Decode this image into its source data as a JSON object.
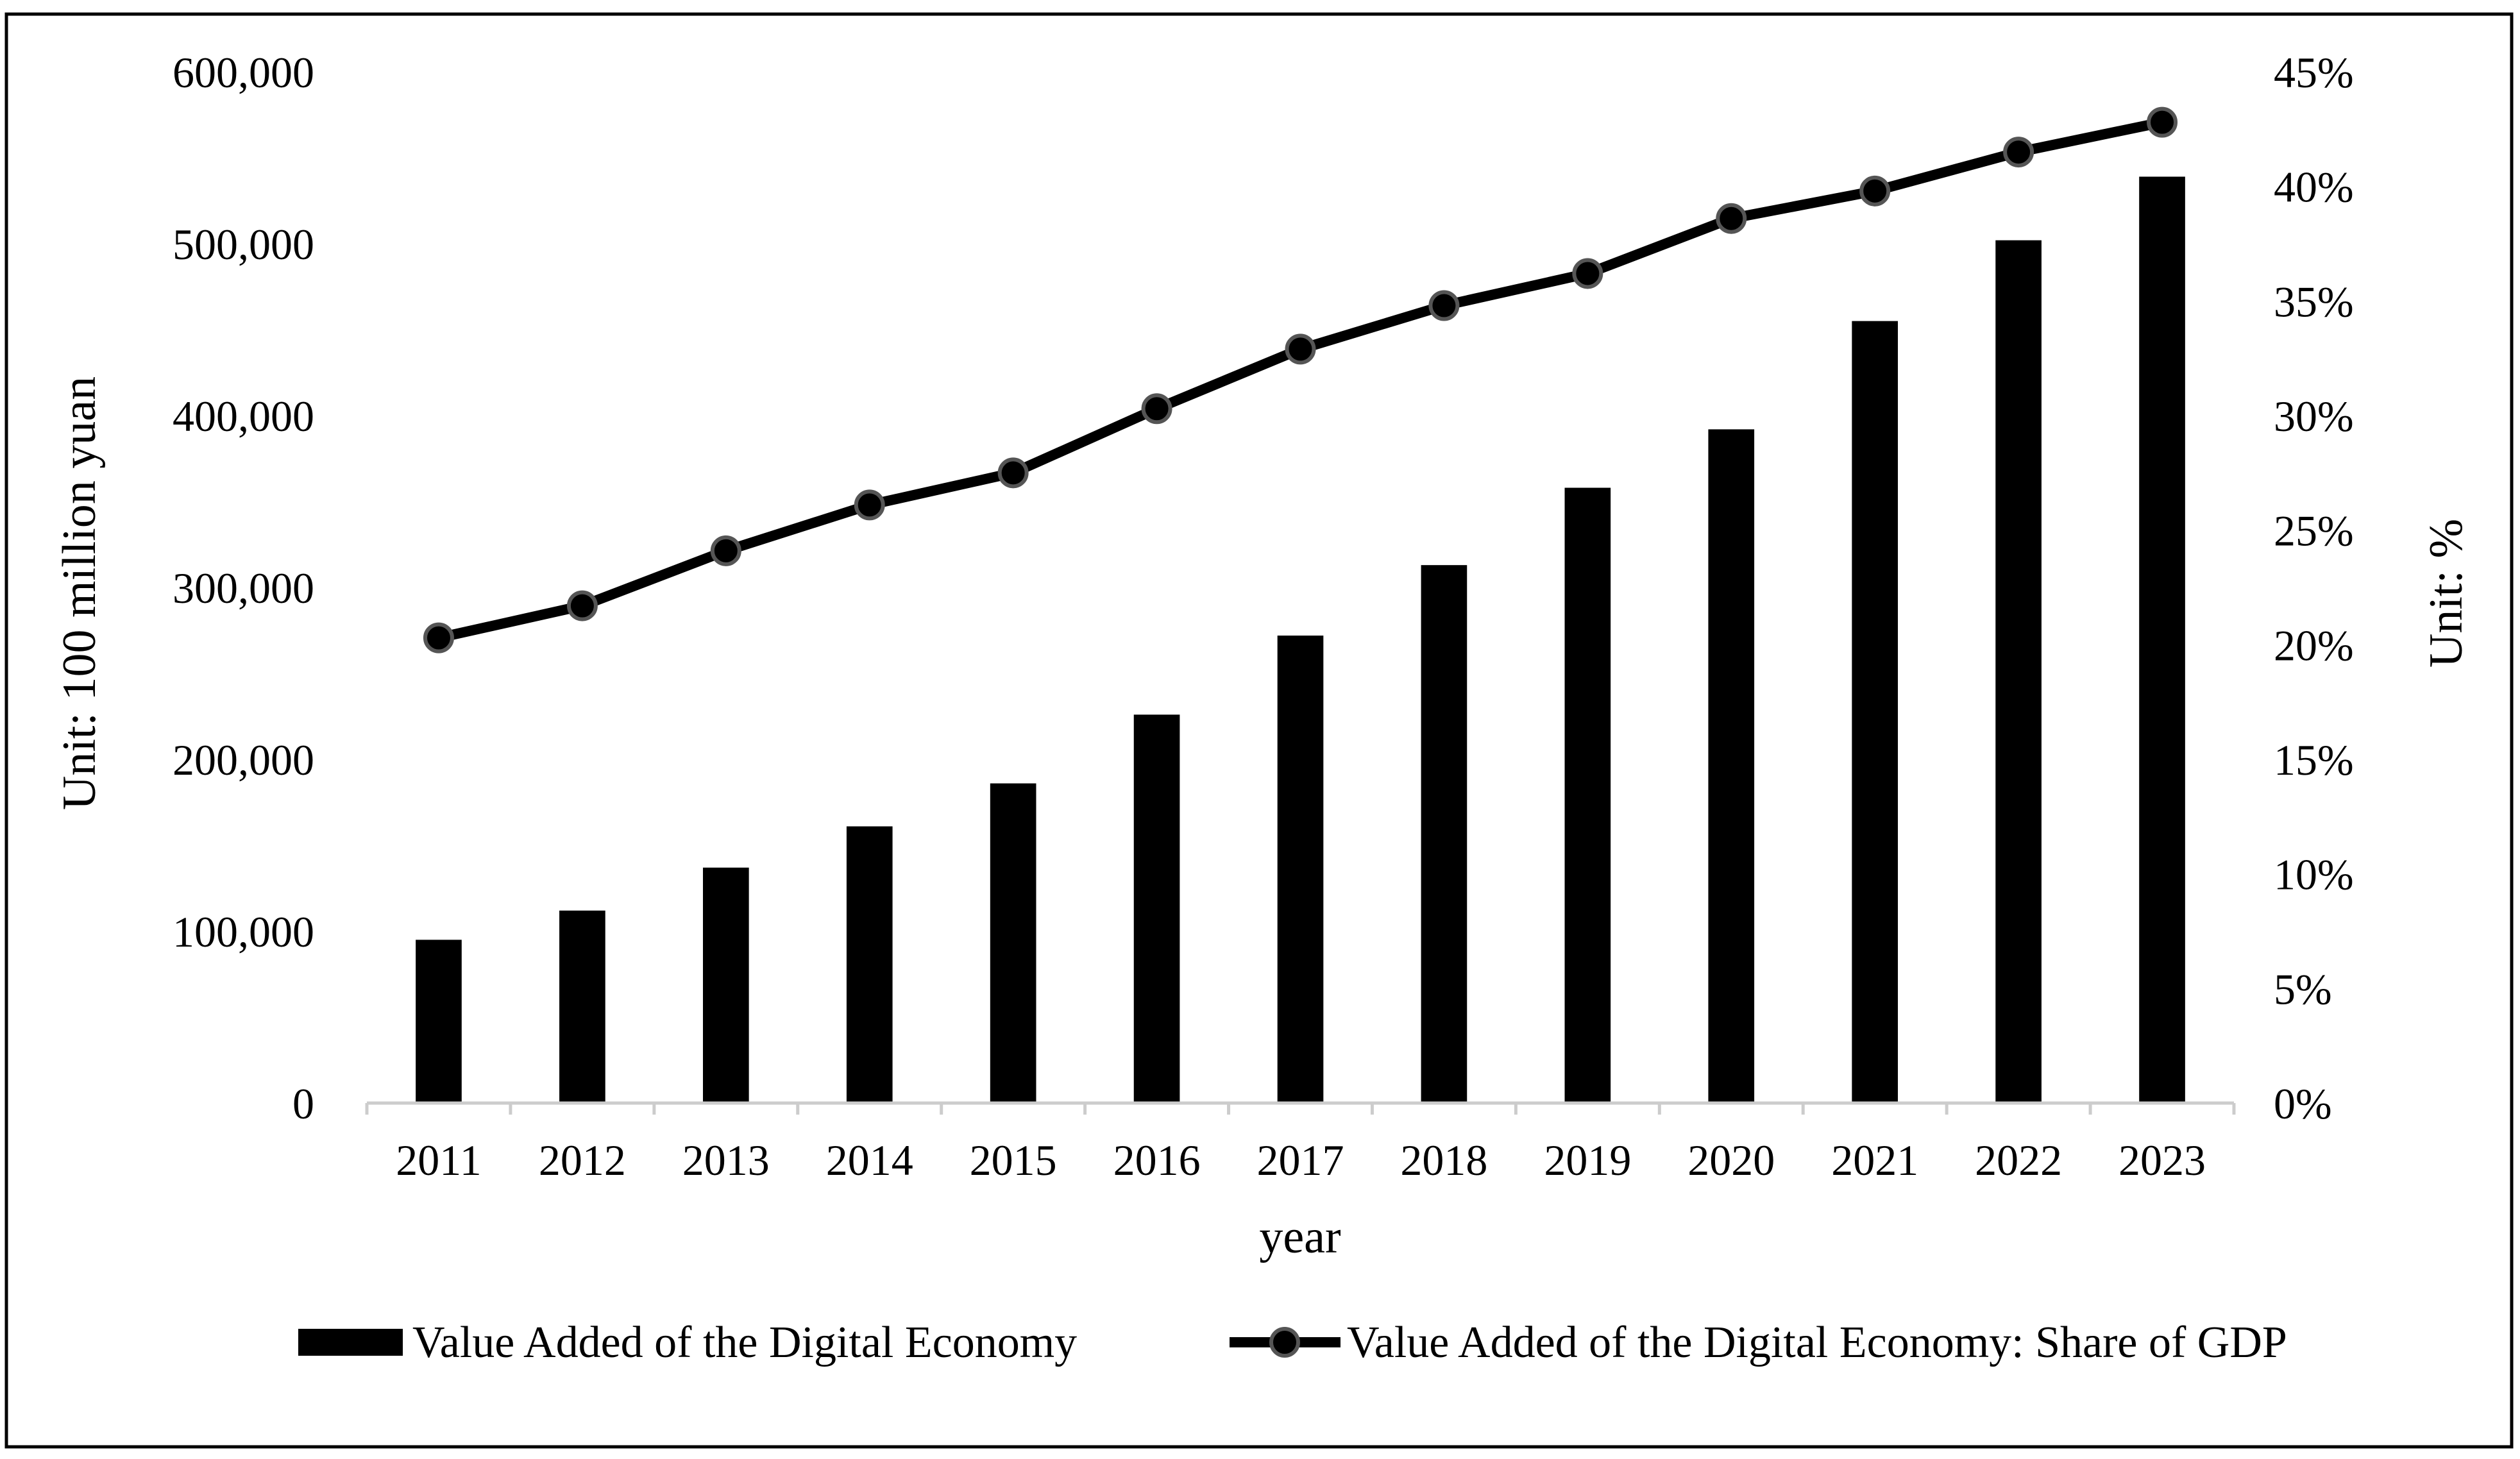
{
  "colors": {
    "bar": "#000000",
    "line": "#000000",
    "marker_outline": "#555555",
    "axis": "#cccccc",
    "frame": "#000000",
    "background": "#ffffff"
  },
  "chart_data": {
    "type": "bar",
    "categories": [
      "2011",
      "2012",
      "2013",
      "2014",
      "2015",
      "2016",
      "2017",
      "2018",
      "2019",
      "2020",
      "2021",
      "2022",
      "2023"
    ],
    "series": [
      {
        "name": "Value Added of the Digital Economy",
        "type": "bar",
        "axis": "left",
        "values": [
          95000,
          112000,
          137000,
          161000,
          186000,
          226000,
          272000,
          313000,
          358000,
          392000,
          455000,
          502000,
          539000
        ]
      },
      {
        "name": "Value Added of the Digital Economy: Share of GDP",
        "type": "line",
        "axis": "right",
        "marker": "circle",
        "values": [
          20.3,
          21.7,
          24.1,
          26.1,
          27.5,
          30.3,
          32.9,
          34.8,
          36.2,
          38.6,
          39.8,
          41.5,
          42.8
        ]
      }
    ],
    "xlabel": "year",
    "ylabel": "Unit: 100 million yuan",
    "y2label": "Unit:  %",
    "ylim": [
      0,
      600000
    ],
    "y2lim": [
      0,
      45
    ],
    "yticks": [
      "0",
      "100,000",
      "200,000",
      "300,000",
      "400,000",
      "500,000",
      "600,000"
    ],
    "y2ticks": [
      "0%",
      "5%",
      "10%",
      "15%",
      "20%",
      "25%",
      "30%",
      "35%",
      "40%",
      "45%"
    ],
    "grid": false,
    "legend_position": "bottom"
  }
}
